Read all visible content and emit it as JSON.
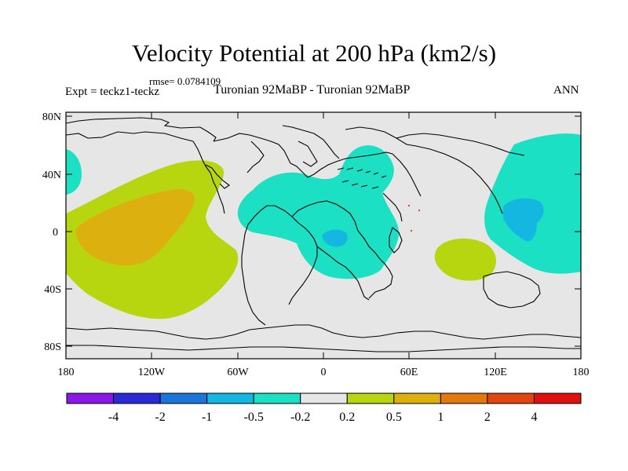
{
  "title": "Velocity Potential at 200 hPa (km2/s)",
  "rmse_label": "rmse= 0.0784109",
  "expt_label": "Expt = teckz1-teckz",
  "subtitle": "Turonian  92MaBP - Turonian  92MaBP",
  "season": "ANN",
  "lat_ticks": [
    "80N",
    "40N",
    "0",
    "40S",
    "80S"
  ],
  "lon_ticks": [
    "180",
    "120W",
    "60W",
    "0",
    "60E",
    "120E",
    "180"
  ],
  "colorbar": {
    "colors": [
      "#8a19e6",
      "#2a2ad6",
      "#1a76d9",
      "#14b7e0",
      "#1ce0c4",
      "#e6e6e6",
      "#b7d60f",
      "#dcb00e",
      "#e1790f",
      "#e04710",
      "#e01010"
    ],
    "labels": [
      "-4",
      "-2",
      "-1",
      "-0.5",
      "-0.2",
      "0.2",
      "0.5",
      "1",
      "2",
      "4"
    ]
  },
  "fill_colors": {
    "land_bg": "#e6e6e6",
    "neg_02": "#1ce0c4",
    "neg_05": "#14b7e0",
    "neg_1": "#1a76d9",
    "pos_02": "#b7d60f",
    "pos_05": "#dcb00e"
  }
}
